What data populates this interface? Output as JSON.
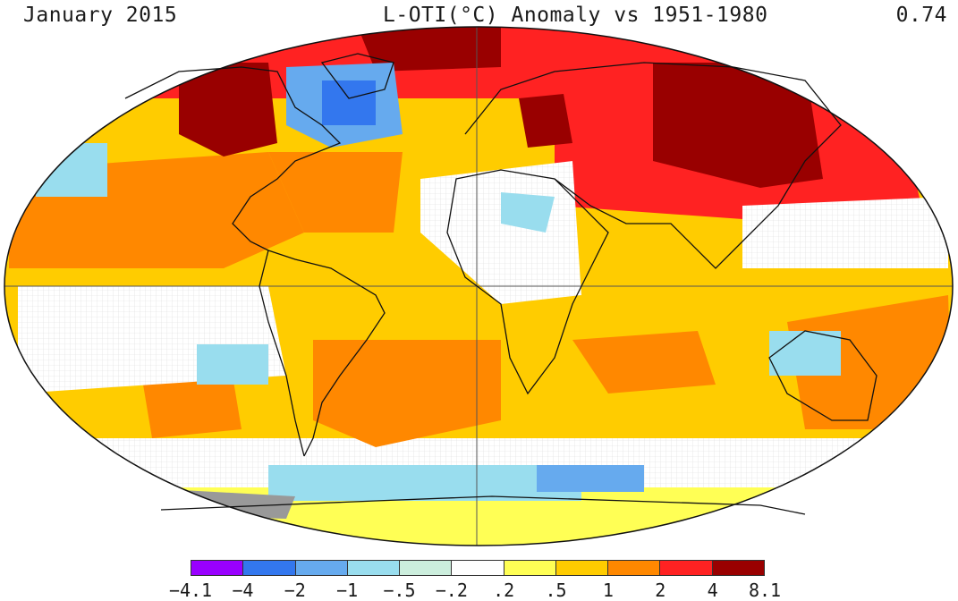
{
  "header": {
    "left": "January 2015",
    "center": "L-OTI(°C) Anomaly vs 1951-1980",
    "right": "0.74"
  },
  "map": {
    "projection": "Robinson",
    "content": "Global land-ocean temperature anomaly map"
  },
  "legend": {
    "colors": [
      "#9900ff",
      "#3377ee",
      "#66aaee",
      "#99ddee",
      "#cceedd",
      "#ffffff",
      "#ffff55",
      "#ffcc00",
      "#ff8800",
      "#ff2222",
      "#990000"
    ],
    "labels": [
      "-4.1",
      "-4",
      "-2",
      "-1",
      "-.5",
      "-.2",
      ".2",
      ".5",
      "1",
      "2",
      "4",
      "8.1"
    ]
  }
}
